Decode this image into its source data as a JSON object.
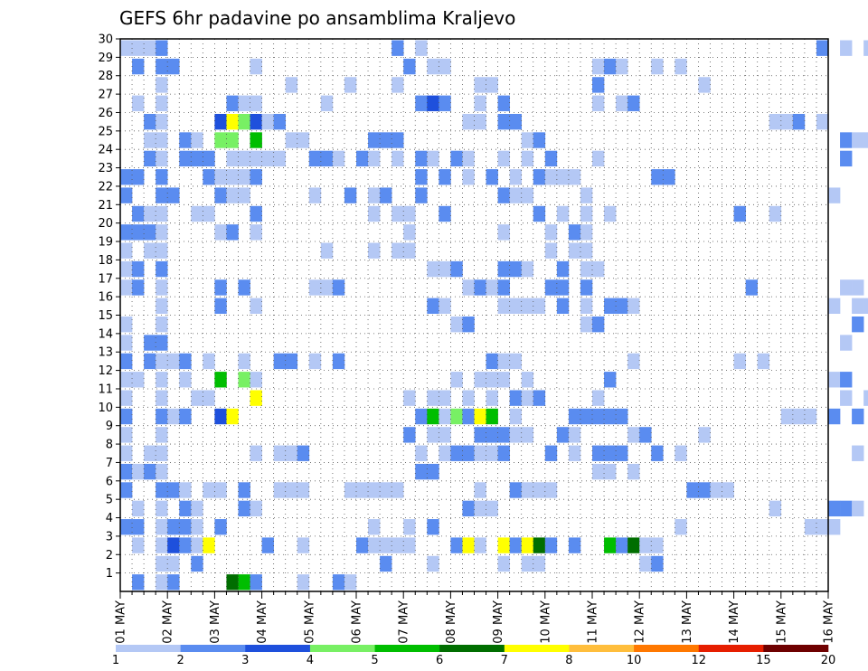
{
  "chart_data": {
    "type": "heatmap",
    "title": "GEFS 6hr padavine po ansamblima Kraljevo",
    "xlabel": "",
    "ylabel": "",
    "y_ticks": [
      1,
      2,
      3,
      4,
      5,
      6,
      7,
      8,
      9,
      10,
      11,
      12,
      13,
      14,
      15,
      16,
      17,
      18,
      19,
      20,
      21,
      22,
      23,
      24,
      25,
      26,
      27,
      28,
      29,
      30
    ],
    "ylim": [
      0,
      30
    ],
    "x_ticks": [
      "01 MAY",
      "02 MAY",
      "03 MAY",
      "04 MAY",
      "05 MAY",
      "06 MAY",
      "07 MAY",
      "08 MAY",
      "09 MAY",
      "10 MAY",
      "11 MAY",
      "12 MAY",
      "13 MAY",
      "14 MAY",
      "15 MAY",
      "16 MAY"
    ],
    "xlim": [
      0,
      60
    ],
    "steps_per_day": 4,
    "grid": true,
    "legend_position": "bottom",
    "legend_labels": [
      "1",
      "2",
      "3",
      "4",
      "5",
      "6",
      "7",
      "8",
      "10",
      "12",
      "15",
      "20"
    ],
    "color_scale": [
      "#b4c8f5",
      "#5a8cf0",
      "#1e50dc",
      "#78f064",
      "#00be00",
      "#006e00",
      "#ffff00",
      "#ffbe3c",
      "#ff7800",
      "#e61e00",
      "#6e0000"
    ],
    "member_days": [
      [
        1,
        2,
        2,
        1,
        1,
        0,
        0,
        0,
        0,
        0,
        0,
        0,
        0,
        0,
        0,
        0
      ],
      [
        1,
        1,
        0,
        0,
        0,
        1,
        1,
        1,
        1,
        0,
        0,
        1,
        0,
        0,
        0,
        0
      ],
      [
        1,
        2,
        1,
        1,
        0,
        1,
        1,
        2,
        2,
        1,
        2,
        1,
        0,
        0,
        0,
        0
      ],
      [
        1,
        1,
        1,
        0,
        0,
        1,
        1,
        1,
        0,
        0,
        0,
        1,
        0,
        0,
        1,
        1
      ],
      [
        1,
        1,
        1,
        0,
        0,
        0,
        1,
        1,
        0,
        0,
        1,
        1,
        0,
        1,
        0,
        1
      ],
      [
        1,
        1,
        1,
        1,
        1,
        1,
        0,
        1,
        1,
        1,
        0,
        0,
        1,
        0,
        0,
        0
      ],
      [
        1,
        0,
        0,
        0,
        0,
        0,
        1,
        1,
        0,
        0,
        1,
        0,
        0,
        0,
        0,
        0
      ],
      [
        1,
        1,
        1,
        1,
        0,
        0,
        1,
        1,
        1,
        1,
        1,
        1,
        0,
        0,
        0,
        1
      ],
      [
        1,
        0,
        0,
        0,
        0,
        0,
        1,
        1,
        1,
        1,
        1,
        1,
        1,
        1,
        0,
        0
      ],
      [
        1,
        1,
        2,
        0,
        0,
        0,
        2,
        2,
        1,
        1,
        1,
        0,
        0,
        0,
        1,
        1
      ],
      [
        1,
        1,
        2,
        1,
        0,
        0,
        1,
        1,
        1,
        0,
        1,
        0,
        0,
        0,
        0,
        1
      ],
      [
        1,
        1,
        2,
        1,
        0,
        0,
        1,
        1,
        1,
        0,
        1,
        0,
        0,
        0,
        0,
        1
      ],
      [
        1,
        1,
        1,
        1,
        1,
        0,
        0,
        1,
        1,
        0,
        1,
        0,
        0,
        1,
        0,
        0
      ],
      [
        1,
        0,
        0,
        0,
        0,
        0,
        0,
        0,
        0,
        0,
        0,
        0,
        0,
        0,
        0,
        1
      ],
      [
        1,
        0,
        0,
        0,
        0,
        0,
        0,
        1,
        0,
        1,
        1,
        0,
        0,
        0,
        0,
        1
      ],
      [
        1,
        0,
        1,
        0,
        0,
        0,
        1,
        0,
        1,
        1,
        1,
        0,
        0,
        0,
        0,
        1
      ],
      [
        1,
        0,
        1,
        0,
        1,
        0,
        1,
        1,
        1,
        1,
        0,
        0,
        0,
        1,
        0,
        1
      ],
      [
        1,
        0,
        0,
        0,
        0,
        0,
        1,
        1,
        1,
        1,
        1,
        0,
        0,
        0,
        0,
        0
      ],
      [
        1,
        0,
        0,
        0,
        1,
        1,
        1,
        0,
        0,
        1,
        0,
        0,
        0,
        0,
        0,
        1
      ],
      [
        1,
        0,
        1,
        0,
        0,
        0,
        1,
        0,
        1,
        1,
        0,
        0,
        0,
        0,
        0,
        0
      ],
      [
        1,
        1,
        1,
        0,
        0,
        1,
        1,
        0,
        1,
        1,
        1,
        0,
        0,
        1,
        0,
        1
      ],
      [
        1,
        1,
        1,
        0,
        1,
        1,
        1,
        0,
        1,
        1,
        0,
        0,
        0,
        0,
        0,
        1
      ],
      [
        1,
        1,
        1,
        0,
        0,
        0,
        1,
        1,
        1,
        1,
        0,
        1,
        0,
        0,
        0,
        0
      ],
      [
        1,
        1,
        1,
        1,
        1,
        1,
        1,
        1,
        1,
        1,
        1,
        0,
        0,
        0,
        0,
        1
      ],
      [
        1,
        1,
        2,
        1,
        0,
        1,
        0,
        0,
        1,
        0,
        0,
        0,
        0,
        0,
        0,
        1
      ],
      [
        1,
        0,
        2,
        1,
        0,
        1,
        0,
        1,
        1,
        0,
        0,
        0,
        0,
        1,
        1,
        0
      ],
      [
        1,
        0,
        1,
        1,
        1,
        0,
        2,
        1,
        1,
        0,
        1,
        0,
        0,
        0,
        0,
        0
      ],
      [
        1,
        0,
        0,
        1,
        1,
        1,
        1,
        1,
        0,
        0,
        1,
        0,
        1,
        0,
        0,
        0
      ],
      [
        1,
        1,
        1,
        0,
        0,
        0,
        1,
        0,
        0,
        0,
        1,
        1,
        0,
        0,
        0,
        0
      ],
      [
        1,
        0,
        0,
        0,
        0,
        1,
        1,
        0,
        0,
        0,
        0,
        0,
        0,
        0,
        1,
        1
      ]
    ]
  }
}
